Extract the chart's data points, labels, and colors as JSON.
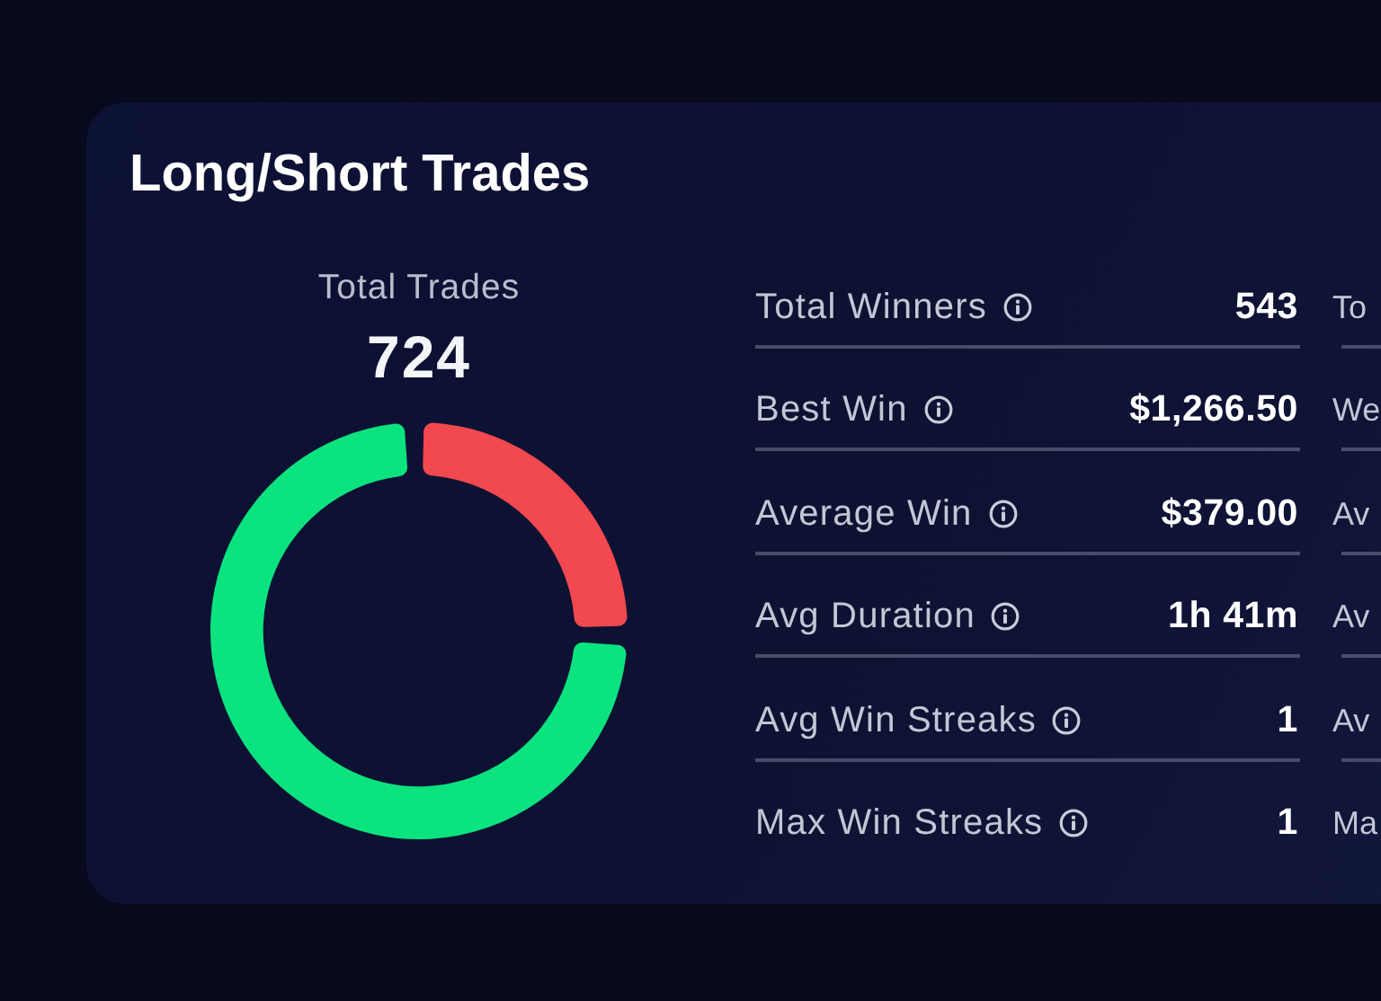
{
  "chart_data": [
    {
      "type": "donut",
      "title": "Long/Short Trades",
      "subtitle": "Total Trades",
      "annotations": [
        "724"
      ],
      "categories": [
        null,
        null
      ],
      "values": [
        25,
        75
      ],
      "colors": [
        "#f2484f",
        "#0be37f"
      ]
    },
    {
      "type": "other",
      "annotations": [
        "Total Winners",
        "543",
        "To",
        "Best Win",
        "$1,266.50",
        "We",
        "Average Win",
        "$379.00",
        "Av",
        "Avg Duration",
        "1h 41m",
        "Av",
        "Avg Win Streaks",
        "1",
        "Av",
        "Max Win Streaks",
        "1",
        "Ma"
      ]
    }
  ]
}
